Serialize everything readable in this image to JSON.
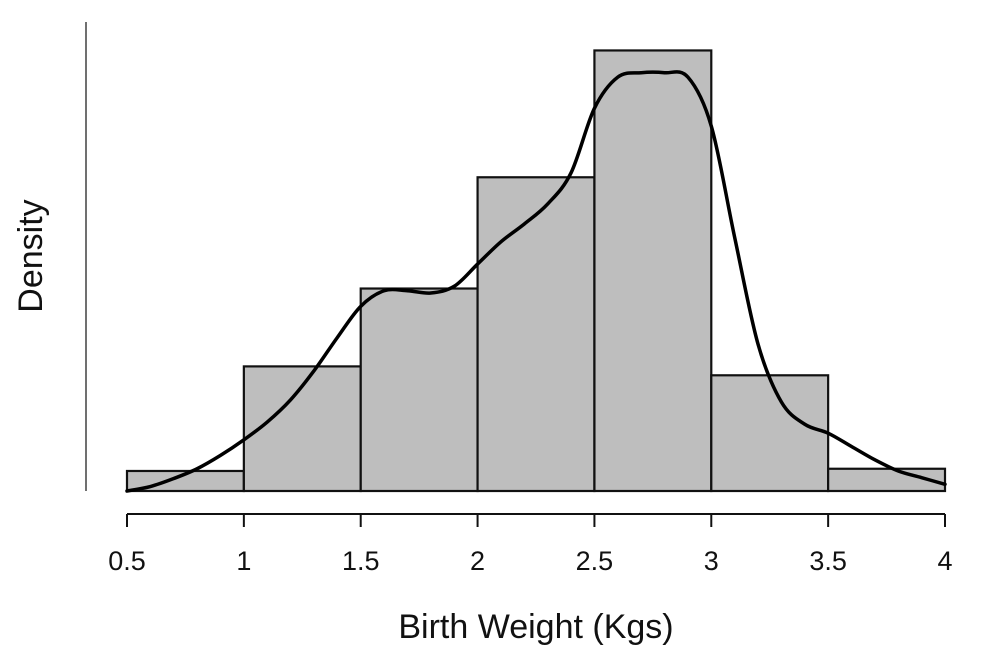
{
  "chart_data": {
    "type": "histogram",
    "title": "",
    "xlabel": "Birth Weight (Kgs)",
    "ylabel": "Density",
    "xlim": [
      0.5,
      4
    ],
    "ylim": [
      0,
      1
    ],
    "x_ticks": [
      0.5,
      1,
      1.5,
      2,
      2.5,
      3,
      3.5,
      4
    ],
    "x_tick_labels": [
      "0.5",
      "1",
      "1.5",
      "2",
      "2.5",
      "3",
      "3.5",
      "4"
    ],
    "y_axis_ticks_shown": false,
    "bins": [
      {
        "from": 0.5,
        "to": 1.0,
        "density": 0.045
      },
      {
        "from": 1.0,
        "to": 1.5,
        "density": 0.28
      },
      {
        "from": 1.5,
        "to": 2.0,
        "density": 0.455
      },
      {
        "from": 2.0,
        "to": 2.5,
        "density": 0.705
      },
      {
        "from": 2.5,
        "to": 3.0,
        "density": 0.99
      },
      {
        "from": 3.0,
        "to": 3.5,
        "density": 0.26
      },
      {
        "from": 3.5,
        "to": 4.0,
        "density": 0.05
      }
    ],
    "density_curve": {
      "x": [
        0.5,
        0.6,
        0.7,
        0.8,
        0.9,
        1.0,
        1.1,
        1.2,
        1.3,
        1.4,
        1.5,
        1.6,
        1.7,
        1.8,
        1.9,
        2.0,
        2.1,
        2.2,
        2.3,
        2.4,
        2.5,
        2.6,
        2.7,
        2.8,
        2.9,
        3.0,
        3.1,
        3.2,
        3.3,
        3.4,
        3.5,
        3.6,
        3.7,
        3.8,
        3.9,
        4.0
      ],
      "y": [
        0.0,
        0.01,
        0.028,
        0.05,
        0.08,
        0.115,
        0.155,
        0.205,
        0.27,
        0.345,
        0.415,
        0.45,
        0.45,
        0.445,
        0.46,
        0.51,
        0.56,
        0.6,
        0.645,
        0.715,
        0.86,
        0.93,
        0.94,
        0.94,
        0.93,
        0.82,
        0.57,
        0.33,
        0.2,
        0.15,
        0.13,
        0.1,
        0.07,
        0.045,
        0.03,
        0.015
      ]
    },
    "colors": {
      "bar_fill": "#bebebe",
      "bar_stroke": "#111111",
      "curve": "#000000",
      "axis": "#111111",
      "background": "#ffffff"
    }
  }
}
